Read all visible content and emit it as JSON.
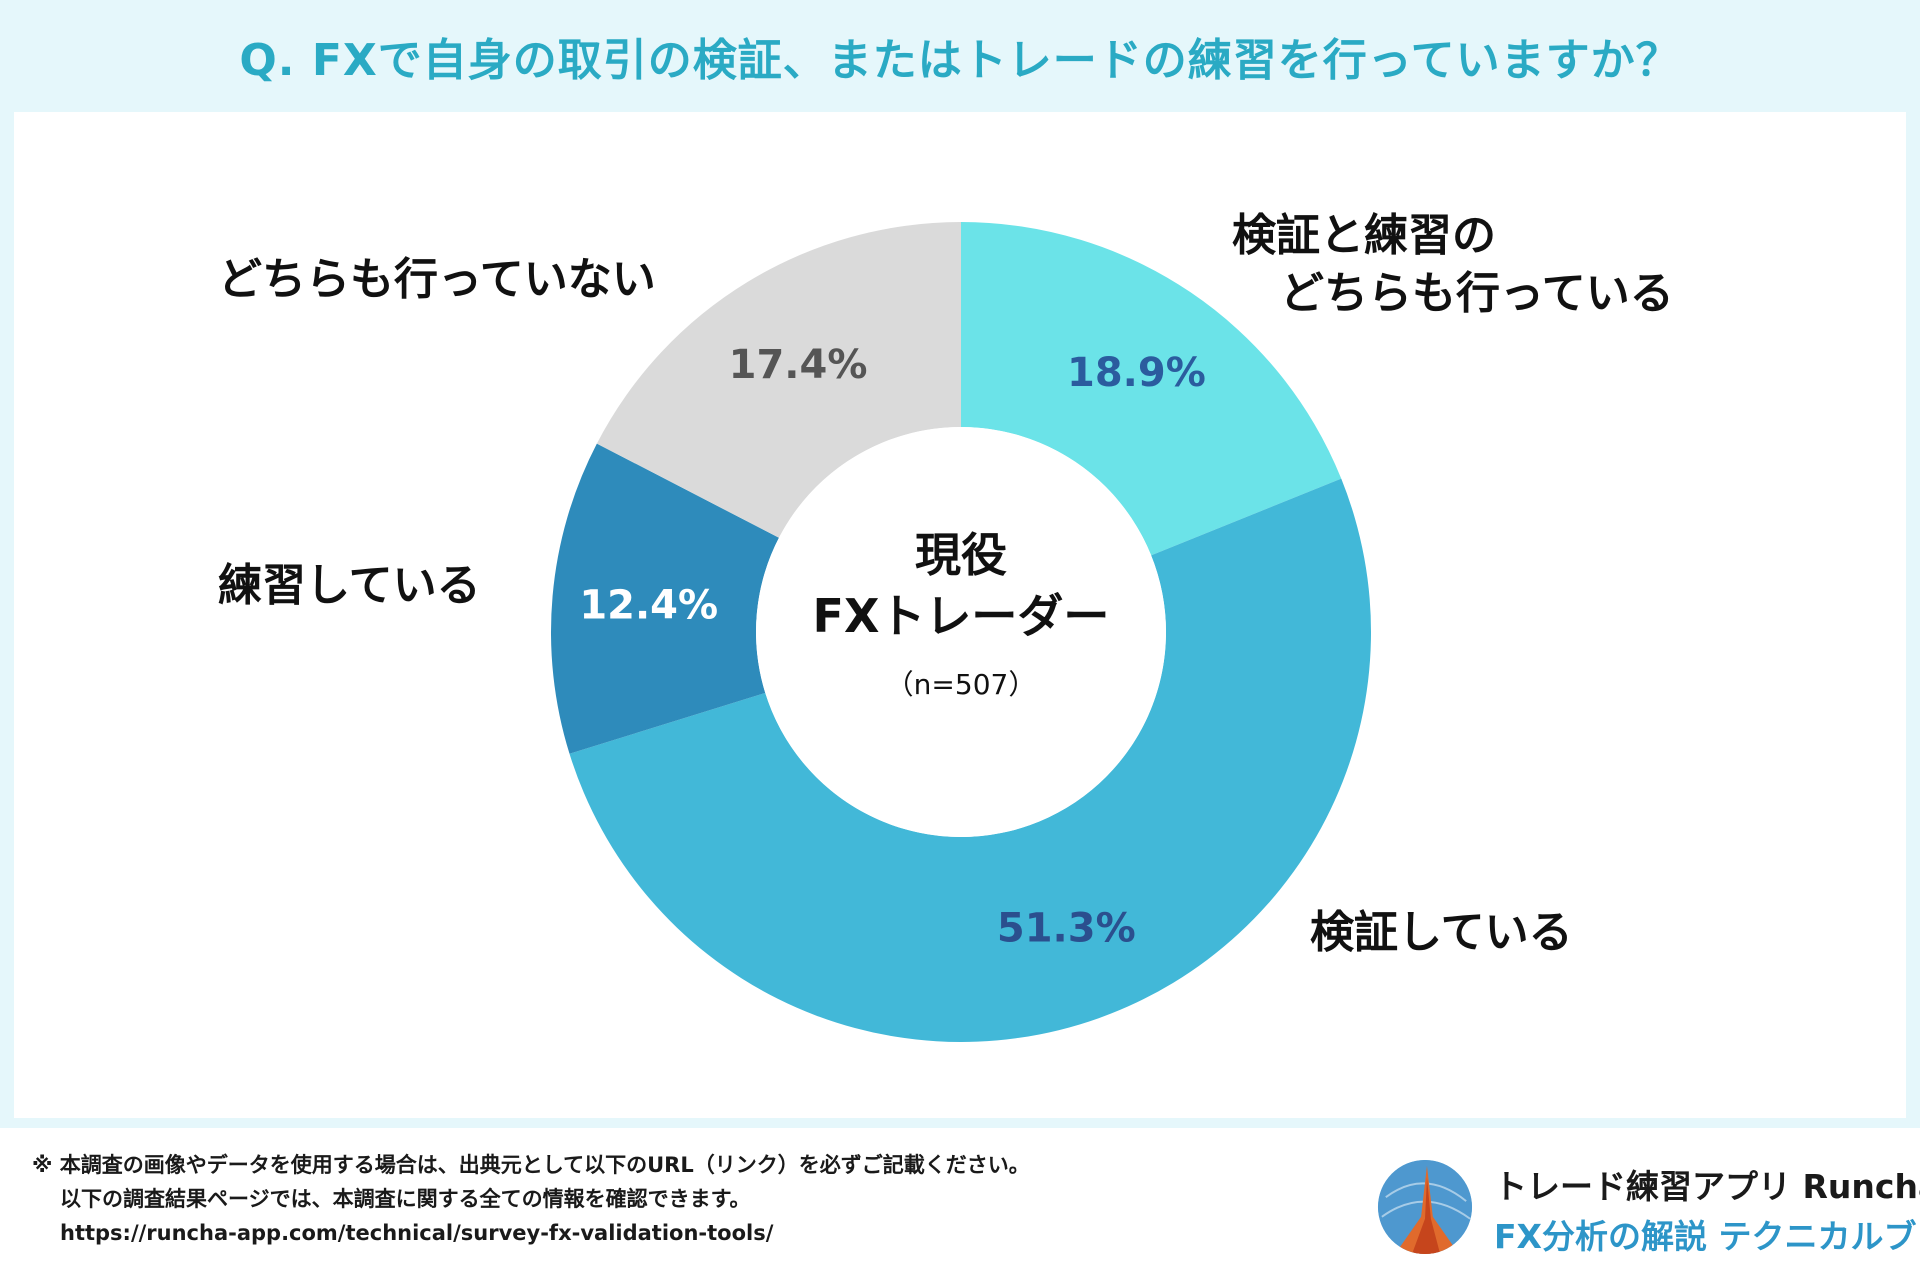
{
  "header": {
    "title": "Q. FXで自身の取引の検証、またはトレードの練習を行っていますか？"
  },
  "chart_data": {
    "type": "pie",
    "variant": "donut",
    "title": "Q. FXで自身の取引の検証、またはトレードの練習を行っていますか？",
    "center_label": [
      "現役",
      "FXトレーダー"
    ],
    "center_sub": "（n=507）",
    "slices": [
      {
        "name": "検証と練習のどちらも行っている",
        "label_lines": [
          "検証と練習の",
          "どちらも行っている"
        ],
        "value": 18.9,
        "label": "18.9%",
        "color": "#6be3e8",
        "label_color": "#2b5c9e"
      },
      {
        "name": "検証している",
        "label_lines": [
          "検証している"
        ],
        "value": 51.3,
        "label": "51.3%",
        "color": "#42b8d8",
        "label_color": "#2b4f8e"
      },
      {
        "name": "練習している",
        "label_lines": [
          "練習している"
        ],
        "value": 12.4,
        "label": "12.4%",
        "color": "#2e8bbb",
        "label_color": "#ffffff"
      },
      {
        "name": "どちらも行っていない",
        "label_lines": [
          "どちらも行っていない"
        ],
        "value": 17.4,
        "label": "17.4%",
        "color": "#dadada",
        "label_color": "#555555"
      }
    ]
  },
  "footer": {
    "note_line1": "※ 本調査の画像やデータを使用する場合は、出典元として以下のURL（リンク）を必ずご記載ください。",
    "note_line2": "以下の調査結果ページでは、本調査に関する全ての情報を確認できます。",
    "url": "https://runcha-app.com/technical/survey-fx-validation-tools/",
    "brand_line1": "トレード練習アプリ  Runcha",
    "brand_line2": "FX分析の解説  テクニカルブック"
  }
}
